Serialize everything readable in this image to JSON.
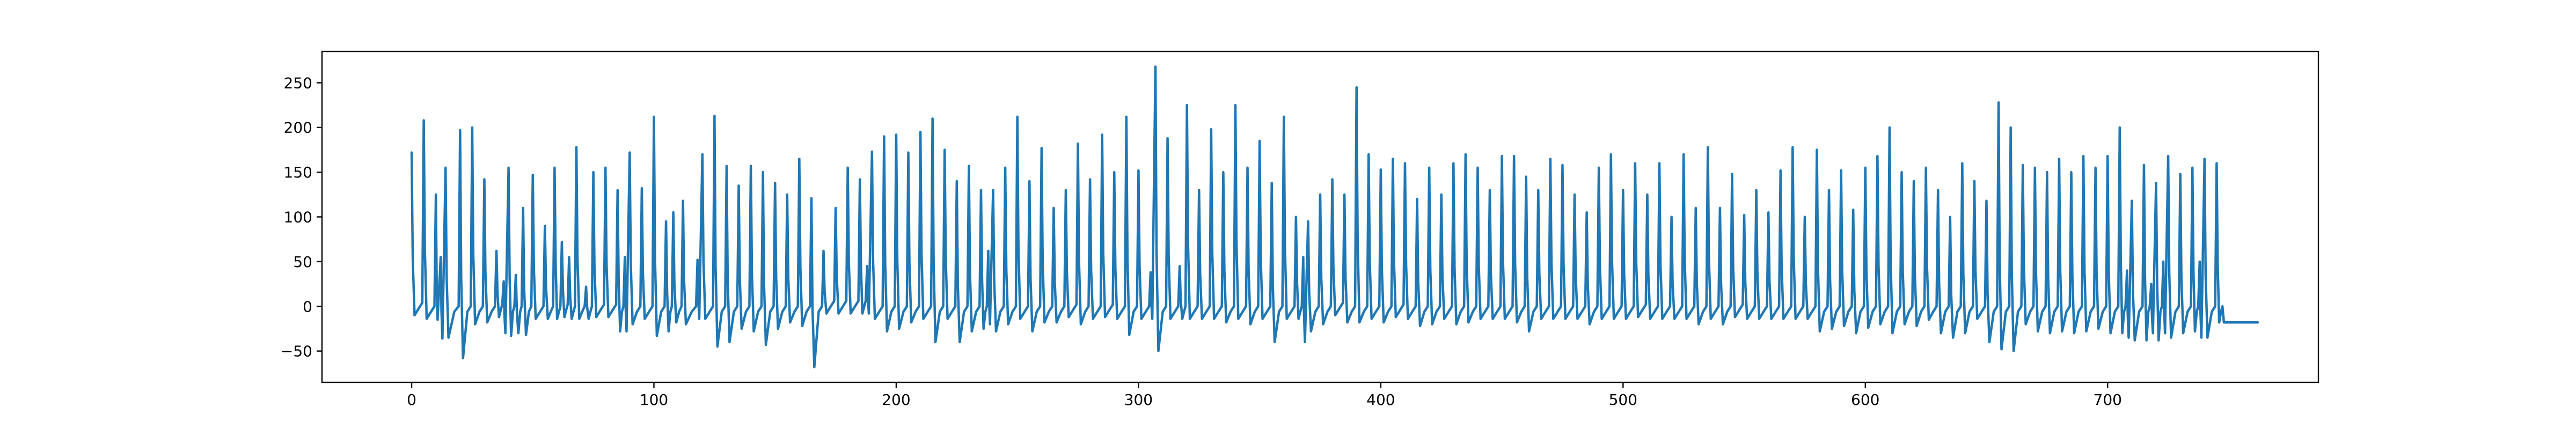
{
  "chart_data": {
    "type": "line",
    "title": "",
    "xlabel": "",
    "ylabel": "",
    "xlim": [
      -37,
      787
    ],
    "ylim": [
      -85,
      285
    ],
    "x_ticks": [
      0,
      100,
      200,
      300,
      400,
      500,
      600,
      700
    ],
    "y_ticks": [
      -50,
      0,
      50,
      100,
      150,
      200,
      250
    ],
    "grid": false,
    "legend": "none",
    "colors": {
      "series": "#1f77b4",
      "axes": "#000000",
      "background": "#ffffff"
    },
    "series": [
      {
        "x_start": 0,
        "x_step": 1,
        "peaks": [
          [
            0,
            172,
            -10
          ],
          [
            5,
            208,
            -14
          ],
          [
            10,
            125,
            -15
          ],
          [
            12,
            55,
            -36
          ],
          [
            14,
            155,
            -35
          ],
          [
            20,
            197,
            -58
          ],
          [
            25,
            200,
            -20
          ],
          [
            30,
            142,
            -18
          ],
          [
            35,
            62,
            -12
          ],
          [
            38,
            28,
            -30
          ],
          [
            40,
            155,
            -33
          ],
          [
            43,
            35,
            -30
          ],
          [
            46,
            110,
            -32
          ],
          [
            50,
            147,
            -14
          ],
          [
            55,
            90,
            -14
          ],
          [
            59,
            155,
            -14
          ],
          [
            62,
            72,
            -12
          ],
          [
            65,
            55,
            -14
          ],
          [
            68,
            178,
            -14
          ],
          [
            72,
            22,
            -14
          ],
          [
            75,
            150,
            -12
          ],
          [
            80,
            155,
            -12
          ],
          [
            85,
            130,
            -28
          ],
          [
            88,
            55,
            -28
          ],
          [
            90,
            172,
            -20
          ],
          [
            95,
            132,
            -14
          ],
          [
            100,
            212,
            -33
          ],
          [
            105,
            95,
            -28
          ],
          [
            108,
            105,
            -18
          ],
          [
            112,
            118,
            -20
          ],
          [
            118,
            52,
            -14
          ],
          [
            120,
            170,
            -14
          ],
          [
            125,
            213,
            -45
          ],
          [
            130,
            157,
            -40
          ],
          [
            135,
            135,
            -25
          ],
          [
            140,
            157,
            -28
          ],
          [
            145,
            150,
            -43
          ],
          [
            150,
            138,
            -25
          ],
          [
            155,
            125,
            -18
          ],
          [
            160,
            165,
            -22
          ],
          [
            165,
            121,
            -68
          ],
          [
            170,
            62,
            -8
          ],
          [
            175,
            110,
            -8
          ],
          [
            180,
            155,
            -8
          ],
          [
            185,
            142,
            -8
          ],
          [
            188,
            45,
            -8
          ],
          [
            190,
            173,
            -14
          ],
          [
            195,
            190,
            -28
          ],
          [
            200,
            192,
            -25
          ],
          [
            205,
            172,
            -18
          ],
          [
            210,
            195,
            -14
          ],
          [
            215,
            210,
            -40
          ],
          [
            220,
            175,
            -14
          ],
          [
            225,
            140,
            -40
          ],
          [
            230,
            157,
            -28
          ],
          [
            235,
            130,
            -25
          ],
          [
            238,
            62,
            -20
          ],
          [
            240,
            130,
            -28
          ],
          [
            245,
            155,
            -20
          ],
          [
            250,
            212,
            -14
          ],
          [
            255,
            140,
            -28
          ],
          [
            260,
            177,
            -18
          ],
          [
            265,
            110,
            -18
          ],
          [
            270,
            130,
            -12
          ],
          [
            275,
            182,
            -20
          ],
          [
            280,
            142,
            -14
          ],
          [
            285,
            192,
            -12
          ],
          [
            290,
            150,
            -14
          ],
          [
            295,
            212,
            -32
          ],
          [
            300,
            152,
            -14
          ],
          [
            305,
            38,
            -14
          ],
          [
            307,
            268,
            -50
          ],
          [
            312,
            188,
            -14
          ],
          [
            317,
            45,
            -14
          ],
          [
            320,
            225,
            -14
          ],
          [
            325,
            130,
            -14
          ],
          [
            330,
            198,
            -14
          ],
          [
            335,
            150,
            -18
          ],
          [
            340,
            225,
            -14
          ],
          [
            345,
            155,
            -20
          ],
          [
            350,
            185,
            -14
          ],
          [
            355,
            138,
            -40
          ],
          [
            360,
            212,
            -14
          ],
          [
            365,
            100,
            -14
          ],
          [
            368,
            55,
            -40
          ],
          [
            370,
            95,
            -28
          ],
          [
            375,
            125,
            -20
          ],
          [
            380,
            142,
            -10
          ],
          [
            385,
            125,
            -18
          ],
          [
            390,
            245,
            -18
          ],
          [
            395,
            170,
            -14
          ],
          [
            400,
            153,
            -18
          ],
          [
            405,
            165,
            -12
          ],
          [
            410,
            160,
            -14
          ],
          [
            415,
            120,
            -22
          ],
          [
            420,
            155,
            -20
          ],
          [
            425,
            125,
            -14
          ],
          [
            430,
            160,
            -20
          ],
          [
            435,
            170,
            -18
          ],
          [
            440,
            155,
            -14
          ],
          [
            445,
            130,
            -14
          ],
          [
            450,
            168,
            -14
          ],
          [
            455,
            168,
            -18
          ],
          [
            460,
            145,
            -28
          ],
          [
            465,
            130,
            -14
          ],
          [
            470,
            165,
            -14
          ],
          [
            475,
            158,
            -14
          ],
          [
            480,
            125,
            -14
          ],
          [
            485,
            105,
            -20
          ],
          [
            490,
            155,
            -14
          ],
          [
            495,
            170,
            -14
          ],
          [
            500,
            130,
            -14
          ],
          [
            505,
            160,
            -12
          ],
          [
            510,
            125,
            -14
          ],
          [
            515,
            160,
            -14
          ],
          [
            520,
            100,
            -14
          ],
          [
            525,
            170,
            -14
          ],
          [
            530,
            110,
            -20
          ],
          [
            535,
            178,
            -14
          ],
          [
            540,
            110,
            -20
          ],
          [
            545,
            148,
            -12
          ],
          [
            550,
            102,
            -14
          ],
          [
            555,
            130,
            -14
          ],
          [
            560,
            105,
            -14
          ],
          [
            565,
            152,
            -14
          ],
          [
            570,
            178,
            -14
          ],
          [
            575,
            100,
            -14
          ],
          [
            580,
            175,
            -28
          ],
          [
            585,
            130,
            -25
          ],
          [
            590,
            152,
            -22
          ],
          [
            595,
            108,
            -30
          ],
          [
            600,
            155,
            -24
          ],
          [
            605,
            168,
            -20
          ],
          [
            610,
            200,
            -30
          ],
          [
            615,
            150,
            -20
          ],
          [
            620,
            140,
            -22
          ],
          [
            625,
            155,
            -15
          ],
          [
            630,
            130,
            -30
          ],
          [
            635,
            100,
            -35
          ],
          [
            640,
            160,
            -30
          ],
          [
            645,
            140,
            -14
          ],
          [
            650,
            118,
            -40
          ],
          [
            655,
            228,
            -48
          ],
          [
            660,
            200,
            -50
          ],
          [
            665,
            158,
            -20
          ],
          [
            670,
            155,
            -28
          ],
          [
            675,
            150,
            -30
          ],
          [
            680,
            165,
            -28
          ],
          [
            685,
            150,
            -30
          ],
          [
            690,
            168,
            -28
          ],
          [
            695,
            155,
            -25
          ],
          [
            700,
            168,
            -30
          ],
          [
            705,
            200,
            -30
          ],
          [
            708,
            40,
            -35
          ],
          [
            710,
            118,
            -38
          ],
          [
            715,
            158,
            -38
          ],
          [
            718,
            25,
            -30
          ],
          [
            720,
            138,
            -38
          ],
          [
            723,
            50,
            -30
          ],
          [
            725,
            168,
            -35
          ],
          [
            730,
            148,
            -30
          ],
          [
            735,
            155,
            -28
          ],
          [
            738,
            50,
            -35
          ],
          [
            740,
            165,
            -35
          ],
          [
            745,
            160,
            -18
          ]
        ],
        "tail": [
          [
            748,
            -18
          ],
          [
            751,
            -18
          ],
          [
            755,
            -18
          ],
          [
            762,
            -18
          ]
        ]
      }
    ]
  }
}
